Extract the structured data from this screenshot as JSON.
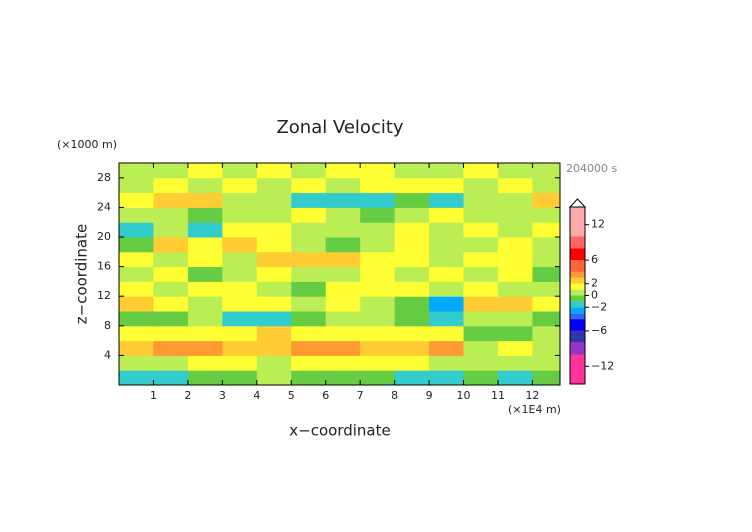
{
  "chart_data": {
    "type": "contour",
    "title": "Zonal Velocity",
    "x_label": "x−coordinate",
    "y_label": "z−coordinate",
    "x_unit": "(×1E4 m)",
    "y_unit": "(×1000 m)",
    "time_label": "204000 s",
    "xlim": [
      0,
      12.8
    ],
    "ylim": [
      0,
      30
    ],
    "xticks": [
      1,
      2,
      3,
      4,
      5,
      6,
      7,
      8,
      9,
      10,
      11,
      12
    ],
    "yticks": [
      4,
      8,
      12,
      16,
      20,
      24,
      28
    ],
    "x": [
      0.5,
      1.5,
      2.5,
      3.5,
      4.5,
      5.5,
      6.5,
      7.5,
      8.5,
      9.5,
      10.5,
      11.5,
      12.5
    ],
    "z": [
      1,
      3,
      5,
      7,
      9,
      11,
      13,
      15,
      17,
      19,
      21,
      23,
      25,
      27,
      29
    ],
    "values": [
      [
        -1.5,
        -1.5,
        -0.5,
        -0.5,
        0.5,
        -0.5,
        -0.5,
        -0.5,
        -1.5,
        -1.5,
        -0.5,
        -1.5,
        -0.5
      ],
      [
        0.5,
        0.5,
        1.5,
        1.5,
        0.5,
        1.5,
        1.5,
        1.5,
        1.5,
        0.5,
        0.5,
        0.5,
        0.5
      ],
      [
        2.5,
        3.5,
        3.5,
        2.5,
        2.5,
        3.5,
        3.5,
        2.5,
        2.5,
        3.5,
        0.5,
        1.5,
        0.5
      ],
      [
        1.5,
        1.5,
        1.5,
        1.5,
        2.5,
        1.5,
        1.5,
        1.5,
        1.5,
        1.5,
        -0.5,
        -0.5,
        0.5
      ],
      [
        -0.5,
        -0.5,
        0.5,
        -1.5,
        -1.5,
        -0.5,
        0.5,
        0.5,
        -0.5,
        -1.5,
        0.5,
        0.5,
        -0.5
      ],
      [
        2.5,
        1.5,
        0.5,
        1.5,
        1.5,
        0.5,
        1.5,
        0.5,
        -0.5,
        -2.5,
        2.5,
        2.5,
        1.5
      ],
      [
        1.5,
        0.5,
        1.5,
        1.5,
        0.5,
        -0.5,
        1.5,
        1.5,
        1.5,
        0.5,
        1.5,
        0.5,
        0.5
      ],
      [
        0.5,
        1.5,
        -0.5,
        0.5,
        1.5,
        0.5,
        0.5,
        1.5,
        0.5,
        1.5,
        0.5,
        1.5,
        -0.5
      ],
      [
        1.5,
        0.5,
        1.5,
        0.5,
        2.5,
        2.5,
        2.5,
        1.5,
        1.5,
        0.5,
        1.5,
        1.5,
        0.5
      ],
      [
        -0.5,
        2.5,
        1.5,
        2.5,
        1.5,
        0.5,
        -0.5,
        0.5,
        1.5,
        0.5,
        0.5,
        1.5,
        0.5
      ],
      [
        -1.5,
        0.5,
        -1.5,
        1.5,
        1.5,
        0.5,
        0.5,
        0.5,
        1.5,
        0.5,
        1.5,
        0.5,
        1.5
      ],
      [
        0.5,
        0.5,
        -0.5,
        0.5,
        0.5,
        1.5,
        0.5,
        -0.5,
        0.5,
        1.5,
        0.5,
        0.5,
        0.5
      ],
      [
        1.5,
        2.5,
        2.5,
        0.5,
        0.5,
        -1.5,
        -1.5,
        -1.5,
        -0.5,
        -1.5,
        0.5,
        0.5,
        2.5
      ],
      [
        0.5,
        1.5,
        0.5,
        1.5,
        0.5,
        1.5,
        0.5,
        1.5,
        1.5,
        1.5,
        0.5,
        1.5,
        0.5
      ],
      [
        0.5,
        0.5,
        1.5,
        0.5,
        1.5,
        0.5,
        1.5,
        1.5,
        0.5,
        0.5,
        1.5,
        0.5,
        0.5
      ]
    ],
    "colorbar": {
      "lim": [
        -15,
        15
      ],
      "boundaries": [
        -15,
        -10,
        -8,
        -6,
        -4,
        -3,
        -2,
        -1,
        0,
        1,
        2,
        3,
        4,
        6,
        8,
        10,
        15
      ],
      "colors": [
        "#ff3399",
        "#9933cc",
        "#3333aa",
        "#0000ff",
        "#3366ff",
        "#00aaff",
        "#33cccc",
        "#66cc44",
        "#bbee55",
        "#ffff33",
        "#ffcc33",
        "#ff9933",
        "#ff6633",
        "#ff0000",
        "#ff6666",
        "#ffaaaa"
      ],
      "ticks": [
        {
          "value": -12,
          "label": "−12"
        },
        {
          "value": -6,
          "label": "−6"
        },
        {
          "value": -2,
          "label": "−2"
        },
        0,
        2,
        6,
        12
      ]
    }
  }
}
